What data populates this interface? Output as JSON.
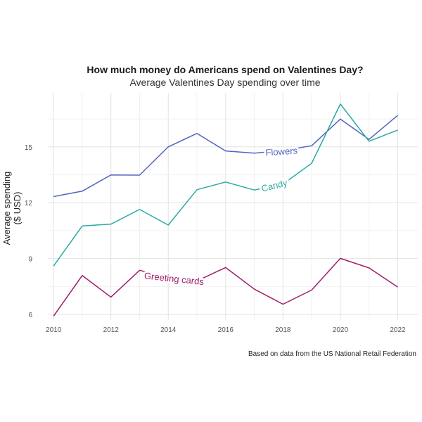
{
  "chart_data": {
    "type": "line",
    "title": "How much money do Americans spend on Valentines Day?",
    "subtitle": "Average Valentines Day spending over time",
    "xlabel": "",
    "ylabel": "Average spending\n($ USD)",
    "caption": "Based on data from the US National Retail Federation",
    "x": [
      2010,
      2011,
      2012,
      2013,
      2014,
      2015,
      2016,
      2017,
      2018,
      2019,
      2020,
      2021,
      2022
    ],
    "xticks": [
      2010,
      2012,
      2014,
      2016,
      2018,
      2020,
      2022
    ],
    "yticks": [
      6,
      9,
      12,
      15
    ],
    "xlim": [
      2009.8,
      2022.7
    ],
    "ylim": [
      5.7,
      17.9
    ],
    "grid": true,
    "legend": "direct labels on lines",
    "series": [
      {
        "name": "Flowers",
        "color": "#5163c1",
        "values": [
          12.33,
          12.62,
          13.49,
          13.48,
          15.0,
          15.72,
          14.78,
          14.66,
          14.8,
          15.06,
          16.49,
          15.4,
          16.69
        ]
      },
      {
        "name": "Candy",
        "color": "#2aa9a4",
        "values": [
          8.6,
          10.75,
          10.85,
          11.64,
          10.8,
          12.7,
          13.11,
          12.68,
          13.0,
          14.12,
          17.3,
          15.3,
          15.9
        ]
      },
      {
        "name": "Greeting cards",
        "color": "#a01c6a",
        "values": [
          5.91,
          8.09,
          6.93,
          8.37,
          8.0,
          7.8,
          8.52,
          7.36,
          6.55,
          7.31,
          9.01,
          8.5,
          7.47
        ]
      }
    ]
  }
}
